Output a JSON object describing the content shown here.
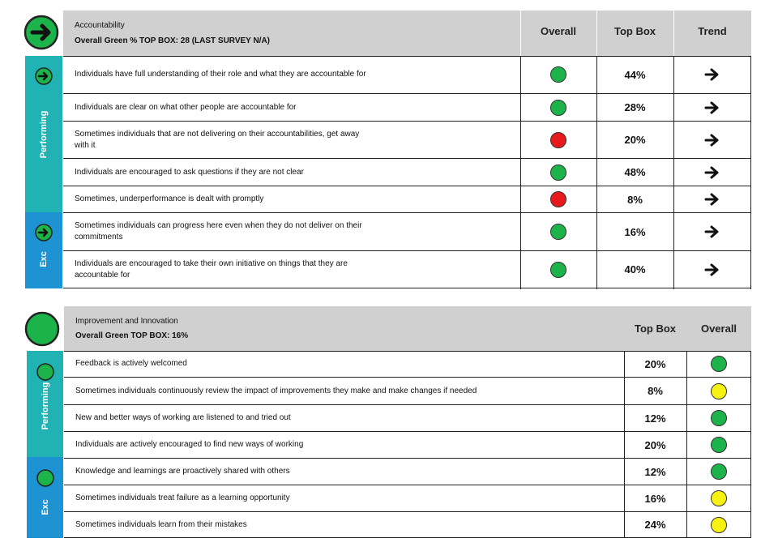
{
  "colors": {
    "green": "#1db34b",
    "red": "#e8191c",
    "yellow": "#f8f214",
    "teal": "#21b3b3",
    "blue": "#1d93d3",
    "header_grey": "#d0d0d0"
  },
  "accountability": {
    "status_icon": "arrow-right-icon",
    "title": "Accountability",
    "subtitle": "Overall Green % TOP BOX: 28 (LAST SURVEY N/A)",
    "columns": {
      "overall": "Overall",
      "top_box": "Top Box",
      "trend": "Trend"
    },
    "bands": [
      {
        "label": "Performing",
        "color": "teal",
        "icon": "arrow-right-icon"
      },
      {
        "label": "Exc",
        "color": "blue",
        "icon": "arrow-right-icon"
      }
    ],
    "rows": [
      {
        "text": "Individuals have full understanding of their role and what they are accountable for",
        "overall": "green",
        "top_box": "44%",
        "trend": "arrow-right-icon"
      },
      {
        "text": "Individuals are clear on what other people are accountable for",
        "overall": "green",
        "top_box": "28%",
        "trend": "arrow-right-icon"
      },
      {
        "text": "Sometimes individuals that are not delivering on their accountabilities, get away with it",
        "overall": "red",
        "top_box": "20%",
        "trend": "arrow-right-icon"
      },
      {
        "text": "Individuals are encouraged to ask questions if they are not clear",
        "overall": "green",
        "top_box": "48%",
        "trend": "arrow-right-icon"
      },
      {
        "text": "Sometimes, underperformance is dealt with promptly",
        "overall": "red",
        "top_box": "8%",
        "trend": "arrow-right-icon"
      },
      {
        "text": "Sometimes individuals can progress here even when they do not deliver on their commitments",
        "overall": "green",
        "top_box": "16%",
        "trend": "arrow-right-icon"
      },
      {
        "text": "Individuals are encouraged to take their own initiative on things that they are accountable for",
        "overall": "green",
        "top_box": "40%",
        "trend": "arrow-right-icon"
      }
    ]
  },
  "improvement": {
    "status_icon": "green-circle-icon",
    "title": "Improvement and Innovation",
    "subtitle": "Overall Green TOP BOX: 16%",
    "columns": {
      "top_box": "Top Box",
      "overall": "Overall"
    },
    "bands": [
      {
        "label": "Performing",
        "color": "teal",
        "icon": "green-circle-icon"
      },
      {
        "label": "Exc",
        "color": "blue",
        "icon": "green-circle-icon"
      }
    ],
    "rows": [
      {
        "text": "Feedback is actively welcomed",
        "top_box": "20%",
        "overall": "green"
      },
      {
        "text": "Sometimes individuals continuously review the impact of improvements they make and make changes if needed",
        "top_box": "8%",
        "overall": "yellow"
      },
      {
        "text": "New and better ways of working are listened to and tried out",
        "top_box": "12%",
        "overall": "green"
      },
      {
        "text": "Individuals are actively encouraged to find new ways of working",
        "top_box": "20%",
        "overall": "green"
      },
      {
        "text": "Knowledge and learnings are proactively shared with others",
        "top_box": "12%",
        "overall": "green"
      },
      {
        "text": "Sometimes individuals treat failure as a learning opportunity",
        "top_box": "16%",
        "overall": "yellow"
      },
      {
        "text": "Sometimes individuals learn from their mistakes",
        "top_box": "24%",
        "overall": "yellow"
      }
    ]
  }
}
